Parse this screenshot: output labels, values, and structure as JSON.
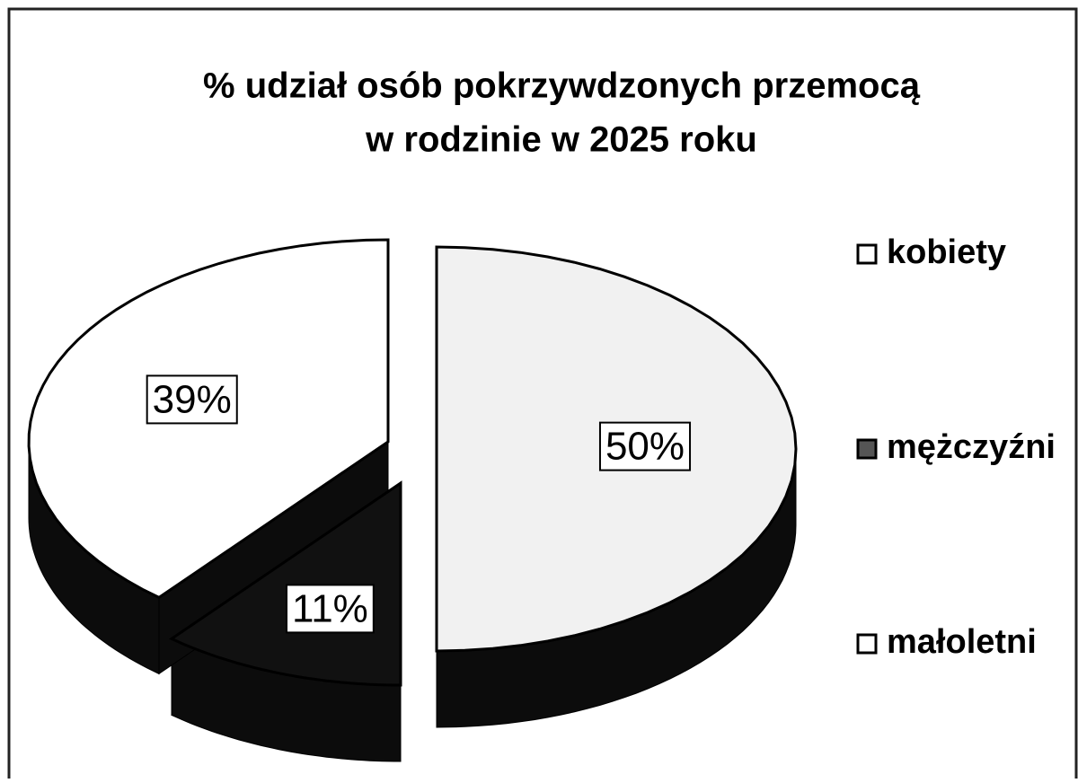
{
  "chart_data": {
    "type": "pie",
    "title": [
      "% udział osób pokrzywdzonych przemocą",
      "w rodzinie w 2025 roku"
    ],
    "categories": [
      "kobiety",
      "mężczyźni",
      "małoletni"
    ],
    "values": [
      50,
      11,
      39
    ],
    "value_labels": [
      "50%",
      "11%",
      "39%"
    ],
    "colors": [
      "#f1f1f1",
      "#111111",
      "#ffffff"
    ],
    "legend": "right"
  }
}
